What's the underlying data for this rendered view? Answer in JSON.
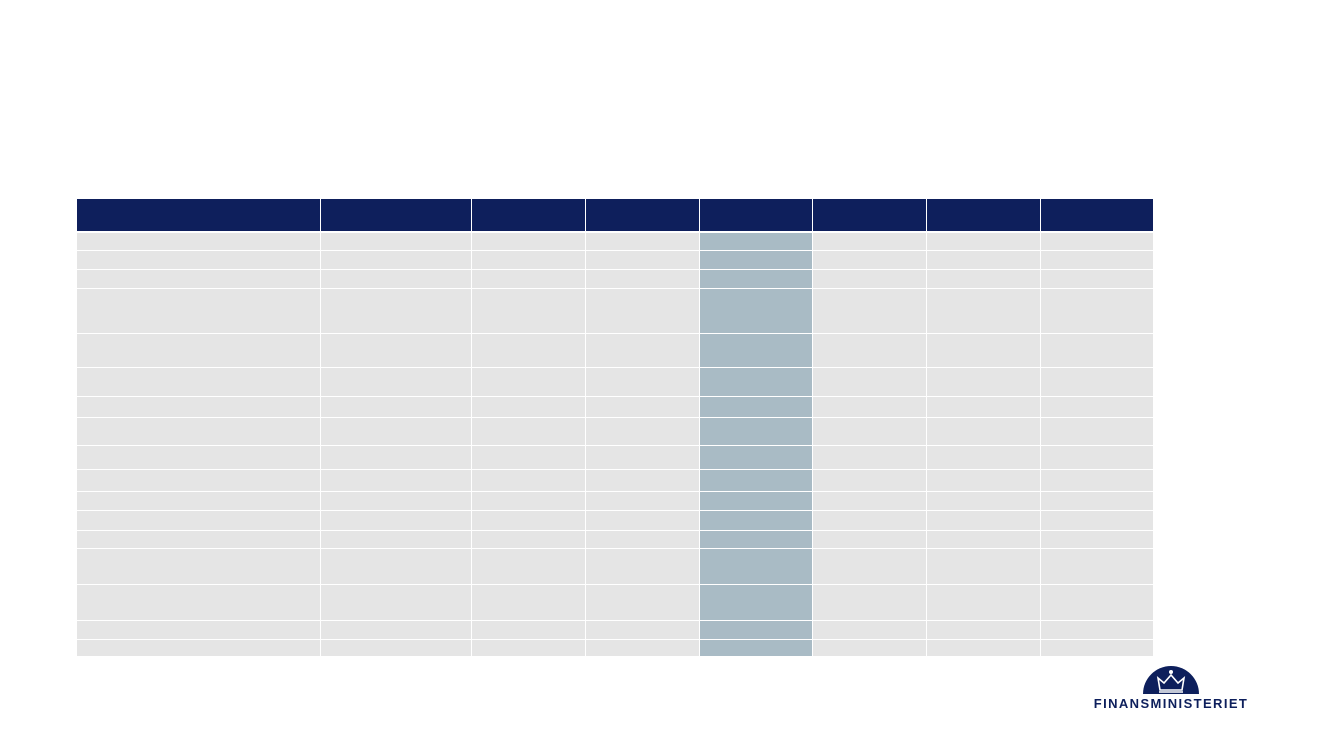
{
  "logo": {
    "text": "FINANSMINISTERIET"
  }
}
